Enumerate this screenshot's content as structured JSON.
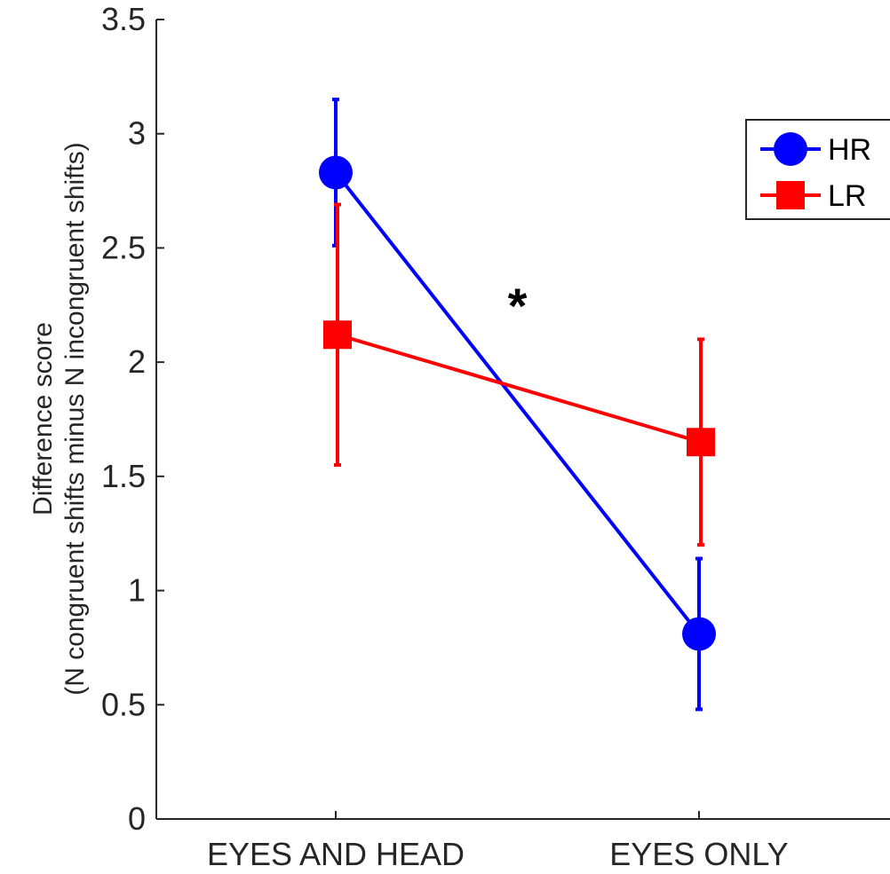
{
  "chart_data": {
    "type": "line",
    "categories": [
      "EYES AND HEAD",
      "EYES ONLY"
    ],
    "ylabel": [
      "Difference score",
      "(N congruent shifts minus N incongruent shifts)"
    ],
    "ylim": [
      0,
      3.5
    ],
    "yticks": [
      0,
      0.5,
      1,
      1.5,
      2,
      2.5,
      3,
      3.5
    ],
    "ytick_labels": [
      "0",
      "0.5",
      "1",
      "1.5",
      "2",
      "2.5",
      "3",
      "3.5"
    ],
    "grid": false,
    "legend": {
      "placement": "top-right"
    },
    "series": [
      {
        "name": "HR",
        "color": "#0000ff",
        "marker": "circle",
        "values": [
          2.83,
          0.81
        ],
        "error_low": [
          2.51,
          0.48
        ],
        "error_high": [
          3.15,
          1.14
        ]
      },
      {
        "name": "LR",
        "color": "#ff0000",
        "marker": "square",
        "values": [
          2.12,
          1.65
        ],
        "error_low": [
          1.55,
          1.2
        ],
        "error_high": [
          2.69,
          2.1
        ]
      }
    ],
    "annotations": [
      {
        "text": "*",
        "between": [
          "EYES AND HEAD",
          "EYES ONLY"
        ],
        "y": 2.32
      }
    ]
  }
}
